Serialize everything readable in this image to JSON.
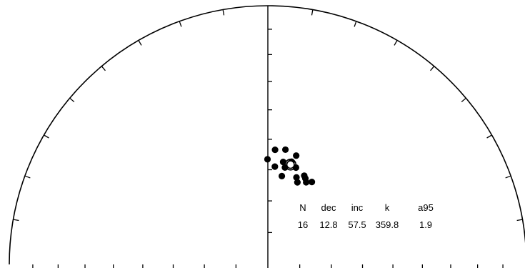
{
  "chart_data": {
    "type": "scatter",
    "projection": "equal-area stereonet (upper half)",
    "grid": false,
    "points": [
      {
        "x": 359.8,
        "y": 56.6
      },
      {
        "x": 3.6,
        "y": 53.4
      },
      {
        "x": 8.7,
        "y": 53.0
      },
      {
        "x": 14.6,
        "y": 54.2
      },
      {
        "x": 13.0,
        "y": 56.5
      },
      {
        "x": 8.5,
        "y": 57.1
      },
      {
        "x": 4.1,
        "y": 58.9
      },
      {
        "x": 10.0,
        "y": 58.8
      },
      {
        "x": 16.2,
        "y": 58.0
      },
      {
        "x": 23.6,
        "y": 60.3
      },
      {
        "x": 28.1,
        "y": 60.4
      },
      {
        "x": 18.2,
        "y": 61.0
      },
      {
        "x": 19.8,
        "y": 62.4
      },
      {
        "x": 25.0,
        "y": 61.3
      },
      {
        "x": 22.3,
        "y": 59.6
      },
      {
        "x": 9.0,
        "y": 61.7
      }
    ],
    "mean": {
      "dec": 12.8,
      "inc": 57.5,
      "a95": 1.9
    },
    "stats": {
      "headers": [
        "N",
        "dec",
        "inc",
        "k",
        "a95"
      ],
      "values": [
        "16",
        "12.8",
        "57.5",
        "359.8",
        "1.9"
      ]
    }
  }
}
